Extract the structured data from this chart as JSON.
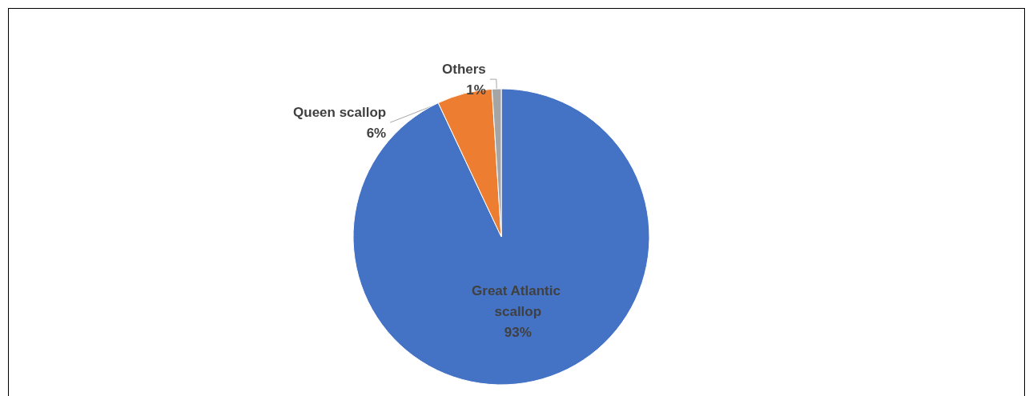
{
  "chart_data": {
    "type": "pie",
    "categories": [
      "Great Atlantic scallop",
      "Queen scallop",
      "Others"
    ],
    "values": [
      93,
      6,
      1
    ],
    "colors": [
      "#4472c4",
      "#ed7d31",
      "#a5a5a5"
    ],
    "value_labels": [
      "93%",
      "6%",
      "1%"
    ]
  }
}
